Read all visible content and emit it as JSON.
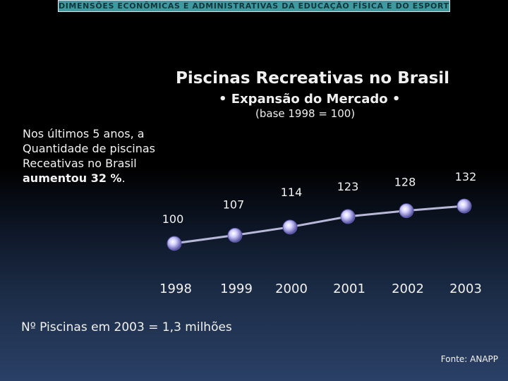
{
  "header": {
    "banner": "DIMENSÕES ECONÔMICAS E ADMINISTRATIVAS DA EDUCAÇÃO FÍSICA E DO ESPORTE"
  },
  "chart_data": {
    "type": "line",
    "title": "Piscinas Recreativas no Brasil",
    "subtitle": "• Expansão do Mercado •",
    "base_note": "(base 1998 = 100)",
    "categories": [
      "1998",
      "1999",
      "2000",
      "2001",
      "2002",
      "2003"
    ],
    "values": [
      100,
      107,
      114,
      123,
      128,
      132
    ],
    "xlabel": "",
    "ylabel": "",
    "ylim": [
      100,
      132
    ],
    "grid": false,
    "legend": "none"
  },
  "note": {
    "line1": "Nos últimos 5 anos, a",
    "line2": "Quantidade de piscinas",
    "line3": "Receativas no Brasil",
    "bold": "aumentou 32 %",
    "tail": "."
  },
  "footer": {
    "total": "Nº Piscinas em 2003 = 1,3 milhões",
    "source": "Fonte: ANAPP"
  },
  "colors": {
    "line": "#b8b8d8",
    "marker_center": "#e8e6ff",
    "marker_edge": "#5a55a8"
  }
}
